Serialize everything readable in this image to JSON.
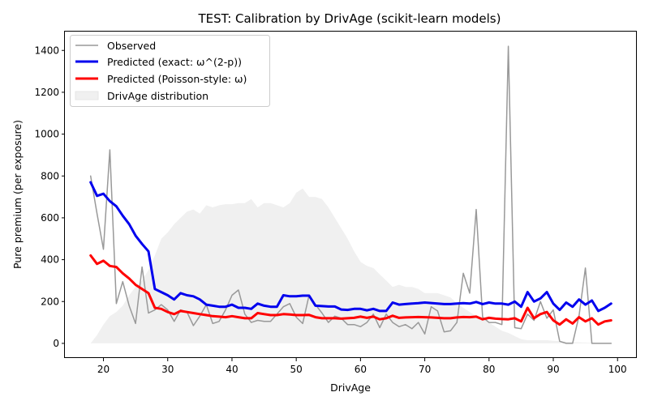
{
  "chart_data": {
    "type": "line",
    "title": "TEST: Calibration by DrivAge (scikit-learn models)",
    "xlabel": "DrivAge",
    "ylabel": "Pure premium (per exposure)",
    "xlim": [
      14,
      103
    ],
    "ylim": [
      -70,
      1490
    ],
    "xticks": [
      20,
      30,
      40,
      50,
      60,
      70,
      80,
      90,
      100
    ],
    "yticks": [
      0,
      200,
      400,
      600,
      800,
      1000,
      1200,
      1400
    ],
    "grid": false,
    "legend_position": "top-left",
    "series": [
      {
        "name": "Observed",
        "color": "#999999",
        "x": [
          18,
          19,
          20,
          21,
          22,
          23,
          24,
          25,
          26,
          27,
          28,
          29,
          30,
          31,
          32,
          33,
          34,
          35,
          36,
          37,
          38,
          39,
          40,
          41,
          42,
          43,
          44,
          45,
          46,
          47,
          48,
          49,
          50,
          51,
          52,
          53,
          54,
          55,
          56,
          57,
          58,
          59,
          60,
          61,
          62,
          63,
          64,
          65,
          66,
          67,
          68,
          69,
          70,
          71,
          72,
          73,
          74,
          75,
          76,
          77,
          78,
          79,
          80,
          81,
          82,
          83,
          84,
          85,
          86,
          87,
          88,
          89,
          90,
          91,
          92,
          93,
          94,
          95,
          96,
          97,
          98,
          99
        ],
        "y": [
          800,
          620,
          450,
          925,
          190,
          295,
          180,
          95,
          365,
          145,
          160,
          185,
          160,
          105,
          160,
          150,
          85,
          130,
          185,
          95,
          105,
          160,
          230,
          255,
          140,
          100,
          110,
          105,
          105,
          140,
          175,
          190,
          125,
          95,
          230,
          185,
          145,
          100,
          130,
          120,
          90,
          90,
          80,
          100,
          140,
          75,
          140,
          100,
          80,
          90,
          70,
          100,
          45,
          175,
          155,
          55,
          60,
          100,
          335,
          240,
          640,
          125,
          100,
          100,
          90,
          1420,
          75,
          70,
          140,
          110,
          200,
          120,
          160,
          10,
          0,
          0,
          130,
          360,
          0,
          0,
          0,
          0
        ]
      },
      {
        "name": "Predicted (exact: ω^(2-p))",
        "color": "#0000ee",
        "x": [
          18,
          19,
          20,
          21,
          22,
          23,
          24,
          25,
          26,
          27,
          28,
          29,
          30,
          31,
          32,
          33,
          34,
          35,
          36,
          37,
          38,
          39,
          40,
          41,
          42,
          43,
          44,
          45,
          46,
          47,
          48,
          49,
          50,
          51,
          52,
          53,
          54,
          55,
          56,
          57,
          58,
          59,
          60,
          61,
          62,
          63,
          64,
          65,
          66,
          67,
          68,
          69,
          70,
          71,
          72,
          73,
          74,
          75,
          76,
          77,
          78,
          79,
          80,
          81,
          82,
          83,
          84,
          85,
          86,
          87,
          88,
          89,
          90,
          91,
          92,
          93,
          94,
          95,
          96,
          97,
          98,
          99
        ],
        "y": [
          770,
          705,
          715,
          680,
          655,
          610,
          570,
          515,
          475,
          440,
          260,
          245,
          230,
          210,
          240,
          230,
          225,
          210,
          185,
          180,
          175,
          175,
          185,
          170,
          170,
          165,
          190,
          180,
          175,
          175,
          230,
          225,
          225,
          228,
          228,
          180,
          178,
          176,
          176,
          162,
          160,
          165,
          165,
          158,
          165,
          155,
          155,
          195,
          185,
          188,
          190,
          192,
          195,
          193,
          190,
          188,
          188,
          190,
          192,
          190,
          198,
          188,
          195,
          190,
          190,
          185,
          200,
          175,
          245,
          200,
          215,
          245,
          190,
          160,
          195,
          175,
          210,
          185,
          205,
          155,
          170,
          190
        ]
      },
      {
        "name": "Predicted (Poisson-style: ω)",
        "color": "#ff0000",
        "x": [
          18,
          19,
          20,
          21,
          22,
          23,
          24,
          25,
          26,
          27,
          28,
          29,
          30,
          31,
          32,
          33,
          34,
          35,
          36,
          37,
          38,
          39,
          40,
          41,
          42,
          43,
          44,
          45,
          46,
          47,
          48,
          49,
          50,
          51,
          52,
          53,
          54,
          55,
          56,
          57,
          58,
          59,
          60,
          61,
          62,
          63,
          64,
          65,
          66,
          67,
          68,
          69,
          70,
          71,
          72,
          73,
          74,
          75,
          76,
          77,
          78,
          79,
          80,
          81,
          82,
          83,
          84,
          85,
          86,
          87,
          88,
          89,
          90,
          91,
          92,
          93,
          94,
          95,
          96,
          97,
          98,
          99
        ],
        "y": [
          420,
          380,
          395,
          370,
          365,
          335,
          310,
          280,
          260,
          240,
          170,
          165,
          150,
          140,
          155,
          150,
          145,
          140,
          135,
          130,
          128,
          125,
          130,
          125,
          120,
          120,
          145,
          140,
          135,
          135,
          140,
          138,
          135,
          135,
          136,
          125,
          120,
          120,
          120,
          118,
          120,
          122,
          128,
          122,
          128,
          115,
          120,
          132,
          122,
          124,
          125,
          126,
          125,
          124,
          122,
          120,
          120,
          124,
          126,
          125,
          128,
          115,
          122,
          118,
          116,
          115,
          120,
          105,
          170,
          120,
          140,
          150,
          110,
          90,
          115,
          95,
          125,
          105,
          120,
          90,
          105,
          110
        ]
      }
    ],
    "distribution": {
      "name": "DrivAge distribution",
      "color": "#f0f0f0",
      "x": [
        18,
        19,
        20,
        21,
        22,
        23,
        24,
        25,
        26,
        27,
        28,
        29,
        30,
        31,
        32,
        33,
        34,
        35,
        36,
        37,
        38,
        39,
        40,
        41,
        42,
        43,
        44,
        45,
        46,
        47,
        48,
        49,
        50,
        51,
        52,
        53,
        54,
        55,
        56,
        57,
        58,
        59,
        60,
        61,
        62,
        63,
        64,
        65,
        66,
        67,
        68,
        69,
        70,
        71,
        72,
        73,
        74,
        75,
        76,
        77,
        78,
        79,
        80,
        81,
        82,
        83,
        84,
        85,
        86,
        87,
        88,
        89,
        90,
        91,
        92,
        93,
        94,
        95,
        96,
        97,
        98,
        99
      ],
      "y": [
        0,
        40,
        90,
        130,
        150,
        180,
        230,
        270,
        300,
        350,
        420,
        500,
        530,
        570,
        600,
        630,
        640,
        620,
        660,
        650,
        660,
        665,
        665,
        670,
        670,
        690,
        650,
        670,
        670,
        660,
        650,
        670,
        720,
        740,
        700,
        700,
        690,
        650,
        600,
        550,
        500,
        440,
        390,
        370,
        360,
        330,
        300,
        270,
        280,
        270,
        270,
        260,
        240,
        240,
        240,
        230,
        220,
        190,
        170,
        150,
        130,
        120,
        100,
        80,
        60,
        50,
        35,
        20,
        15,
        15,
        15,
        15,
        12,
        10,
        8,
        6,
        5,
        4,
        3,
        2,
        1,
        0
      ]
    }
  }
}
